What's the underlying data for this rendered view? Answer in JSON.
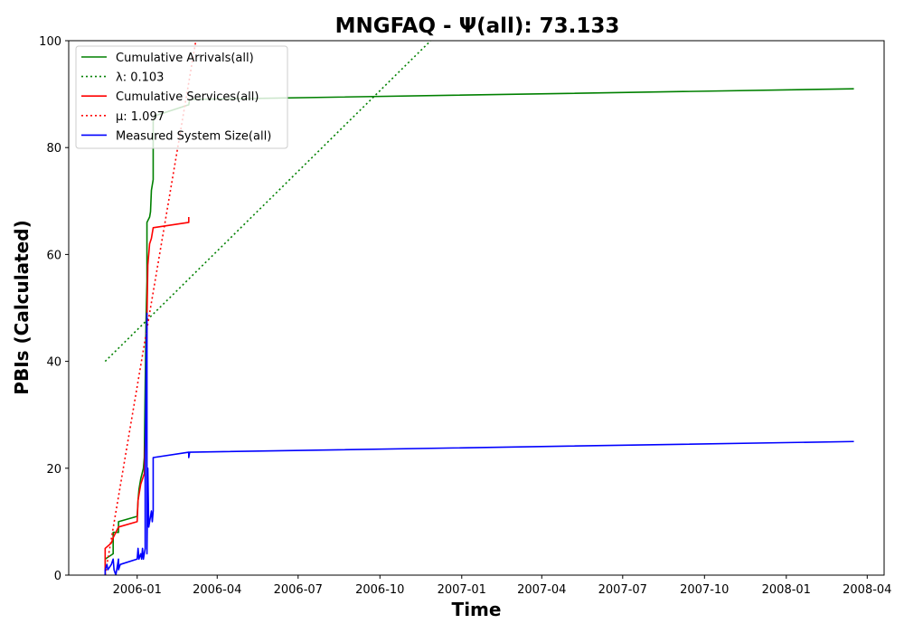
{
  "chart_data": {
    "type": "line",
    "title": "MNGFAQ -  Ψ(all): 73.133",
    "xlabel": "Time",
    "ylabel": "PBIs (Calculated)",
    "xlim": [
      "2005-10-16",
      "2008-04-20"
    ],
    "ylim": [
      0,
      100
    ],
    "x_ticks": [
      "2006-01",
      "2006-04",
      "2006-07",
      "2006-10",
      "2007-01",
      "2007-04",
      "2007-07",
      "2007-10",
      "2008-01",
      "2008-04"
    ],
    "y_ticks": [
      0,
      20,
      40,
      60,
      80,
      100
    ],
    "grid": false,
    "legend_position": "upper-left",
    "series": [
      {
        "name": "Cumulative Arrivals(all)",
        "color": "#008000",
        "style": "solid",
        "points": [
          [
            "2005-11-26",
            0
          ],
          [
            "2005-11-26",
            3
          ],
          [
            "2005-12-05",
            4
          ],
          [
            "2005-12-05",
            8
          ],
          [
            "2005-12-11",
            8
          ],
          [
            "2005-12-11",
            10
          ],
          [
            "2006-01-01",
            11
          ],
          [
            "2006-01-02",
            14
          ],
          [
            "2006-01-03",
            16
          ],
          [
            "2006-01-05",
            18
          ],
          [
            "2006-01-08",
            20
          ],
          [
            "2006-01-09",
            22
          ],
          [
            "2006-01-10",
            35
          ],
          [
            "2006-01-11",
            48
          ],
          [
            "2006-01-12",
            55
          ],
          [
            "2006-01-12",
            66
          ],
          [
            "2006-01-15",
            67
          ],
          [
            "2006-01-16",
            68
          ],
          [
            "2006-01-17",
            72
          ],
          [
            "2006-01-19",
            74
          ],
          [
            "2006-01-19",
            85
          ],
          [
            "2006-01-22",
            86
          ],
          [
            "2006-02-28",
            88
          ],
          [
            "2006-03-01",
            89
          ],
          [
            "2008-03-17",
            91
          ]
        ]
      },
      {
        "name": "λ: 0.103",
        "color": "#008000",
        "style": "dotted",
        "points": [
          [
            "2005-11-26",
            40
          ],
          [
            "2008-03-17",
            178
          ]
        ]
      },
      {
        "name": "Cumulative Services(all)",
        "color": "#ff0000",
        "style": "solid",
        "points": [
          [
            "2005-11-26",
            0
          ],
          [
            "2005-11-26",
            5
          ],
          [
            "2005-12-03",
            6
          ],
          [
            "2005-12-05",
            7
          ],
          [
            "2005-12-08",
            8
          ],
          [
            "2005-12-11",
            9
          ],
          [
            "2006-01-01",
            10
          ],
          [
            "2006-01-02",
            14
          ],
          [
            "2006-01-05",
            17
          ],
          [
            "2006-01-09",
            19
          ],
          [
            "2006-01-11",
            30
          ],
          [
            "2006-01-12",
            48
          ],
          [
            "2006-01-13",
            58
          ],
          [
            "2006-01-15",
            62
          ],
          [
            "2006-01-17",
            63
          ],
          [
            "2006-01-19",
            65
          ],
          [
            "2006-02-28",
            66
          ],
          [
            "2006-02-28",
            67
          ]
        ]
      },
      {
        "name": "μ: 1.097",
        "color": "#ff0000",
        "style": "dotted",
        "points": [
          [
            "2005-11-26",
            0
          ],
          [
            "2006-03-08",
            100
          ]
        ]
      },
      {
        "name": "Measured System Size(all)",
        "color": "#0000ff",
        "style": "solid",
        "points": [
          [
            "2005-11-26",
            0
          ],
          [
            "2005-11-26",
            1
          ],
          [
            "2005-11-28",
            2
          ],
          [
            "2005-11-29",
            1
          ],
          [
            "2005-12-03",
            2
          ],
          [
            "2005-12-05",
            3
          ],
          [
            "2005-12-06",
            1
          ],
          [
            "2005-12-08",
            0
          ],
          [
            "2005-12-11",
            3
          ],
          [
            "2005-12-11",
            1
          ],
          [
            "2005-12-13",
            2
          ],
          [
            "2006-01-01",
            3
          ],
          [
            "2006-01-02",
            5
          ],
          [
            "2006-01-03",
            3
          ],
          [
            "2006-01-05",
            4
          ],
          [
            "2006-01-06",
            3
          ],
          [
            "2006-01-07",
            5
          ],
          [
            "2006-01-08",
            3
          ],
          [
            "2006-01-09",
            4
          ],
          [
            "2006-01-10",
            5
          ],
          [
            "2006-01-10",
            20
          ],
          [
            "2006-01-11",
            38
          ],
          [
            "2006-01-12",
            49
          ],
          [
            "2006-01-12",
            4
          ],
          [
            "2006-01-13",
            20
          ],
          [
            "2006-01-14",
            9
          ],
          [
            "2006-01-15",
            10
          ],
          [
            "2006-01-17",
            12
          ],
          [
            "2006-01-18",
            10
          ],
          [
            "2006-01-19",
            12
          ],
          [
            "2006-01-19",
            22
          ],
          [
            "2006-02-28",
            23
          ],
          [
            "2006-02-28",
            22
          ],
          [
            "2006-03-01",
            23
          ],
          [
            "2008-03-17",
            25
          ]
        ]
      }
    ]
  }
}
